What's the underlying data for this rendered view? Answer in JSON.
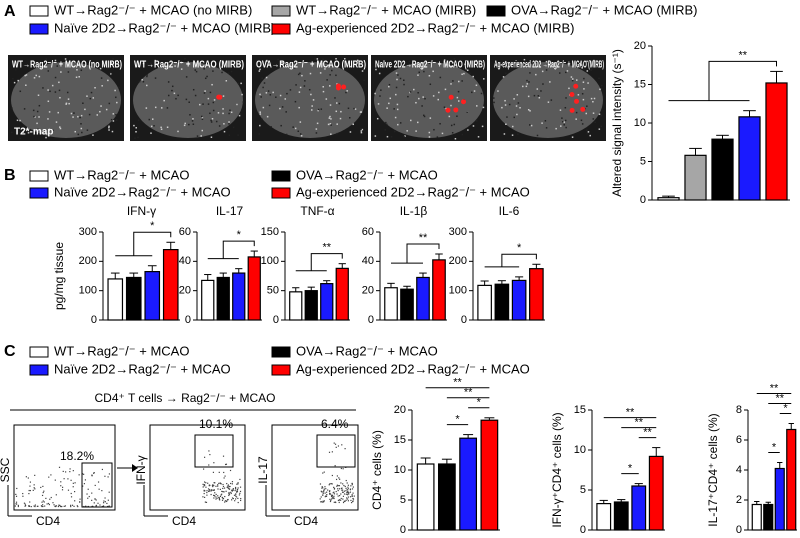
{
  "panel_labels": [
    "A",
    "B",
    "C"
  ],
  "legends": {
    "A": [
      "WT→Rag2⁻/⁻ + MCAO (no MIRB)",
      "WT→Rag2⁻/⁻ + MCAO (MIRB)",
      "OVA→Rag2⁻/⁻ + MCAO (MIRB)",
      "Naïve 2D2→Rag2⁻/⁻ + MCAO (MIRB)",
      "Ag-experienced 2D2→Rag2⁻/⁻ + MCAO (MIRB)"
    ],
    "B": [
      "WT→Rag2⁻/⁻ + MCAO",
      "OVA→Rag2⁻/⁻ + MCAO",
      "Naïve 2D2→Rag2⁻/⁻ + MCAO",
      "Ag-experienced 2D2→Rag2⁻/⁻ + MCAO"
    ],
    "C": [
      "WT→Rag2⁻/⁻ + MCAO",
      "OVA→Rag2⁻/⁻ + MCAO",
      "Naïve 2D2→Rag2⁻/⁻ + MCAO",
      "Ag-experienced 2D2→Rag2⁻/⁻ + MCAO"
    ]
  },
  "mri": {
    "labels": [
      "WT→Rag2⁻/⁻ + MCAO (no MIRB)",
      "WT→Rag2⁻/⁻ + MCAO (MIRB)",
      "OVA→Rag2⁻/⁻ + MCAO (MIRB)",
      "Naïve 2D2→Rag2⁻/⁻ + MCAO (MIRB)",
      "Ag-experienced 2D2 →Rag2⁻/⁻ + MCAO (MIRB)"
    ],
    "map_label": "T2*-map"
  },
  "flow": {
    "title": "CD4⁺ T cells → Rag2⁻/⁻ + MCAO",
    "plots": [
      {
        "y_label": "SSC",
        "x_label": "CD4",
        "gate": "18.2%"
      },
      {
        "y_label": "IFN-γ",
        "x_label": "CD4",
        "gate": "10.1%"
      },
      {
        "y_label": "IL-17",
        "x_label": "CD4",
        "gate": "6.4%"
      }
    ]
  },
  "chart_data": [
    {
      "type": "bar",
      "ylabel": "Altered signal intensity (s⁻¹)",
      "categories": [
        null,
        null,
        null,
        null,
        null
      ],
      "values": [
        0.3,
        5.8,
        7.9,
        10.8,
        15.2
      ],
      "errors": [
        0.2,
        0.9,
        0.5,
        0.8,
        1.5
      ],
      "colors": [
        "#ffffff",
        "#a6a6a6",
        "#000000",
        "#1a1aff",
        "#ff0000"
      ],
      "ylim": [
        0,
        20
      ],
      "yticks": [
        0,
        5,
        10,
        15,
        20
      ],
      "annotations": [
        "**"
      ]
    },
    {
      "type": "bar",
      "title": "IFN-γ",
      "ylabel": "pg/mg tissue",
      "categories": [
        null,
        null,
        null,
        null
      ],
      "values": [
        140,
        145,
        165,
        240
      ],
      "errors": [
        20,
        15,
        20,
        25
      ],
      "colors": [
        "#ffffff",
        "#000000",
        "#1a1aff",
        "#ff0000"
      ],
      "ylim": [
        0,
        300
      ],
      "yticks": [
        0,
        100,
        200,
        300
      ],
      "annotations": [
        "*"
      ]
    },
    {
      "type": "bar",
      "title": "IL-17",
      "categories": [
        null,
        null,
        null,
        null
      ],
      "values": [
        27,
        29,
        32,
        43
      ],
      "errors": [
        4,
        3,
        3,
        4
      ],
      "colors": [
        "#ffffff",
        "#000000",
        "#1a1aff",
        "#ff0000"
      ],
      "ylim": [
        0,
        60
      ],
      "yticks": [
        0,
        20,
        40,
        60
      ],
      "annotations": [
        "*"
      ]
    },
    {
      "type": "bar",
      "title": "TNF-α",
      "categories": [
        null,
        null,
        null,
        null
      ],
      "values": [
        48,
        50,
        62,
        88
      ],
      "errors": [
        7,
        6,
        5,
        8
      ],
      "colors": [
        "#ffffff",
        "#000000",
        "#1a1aff",
        "#ff0000"
      ],
      "ylim": [
        0,
        150
      ],
      "yticks": [
        0,
        50,
        100,
        150
      ],
      "annotations": [
        "**"
      ]
    },
    {
      "type": "bar",
      "title": "IL-1β",
      "categories": [
        null,
        null,
        null,
        null
      ],
      "values": [
        22,
        21,
        29,
        41
      ],
      "errors": [
        3,
        2,
        3,
        4
      ],
      "colors": [
        "#ffffff",
        "#000000",
        "#1a1aff",
        "#ff0000"
      ],
      "ylim": [
        0,
        60
      ],
      "yticks": [
        0,
        20,
        40,
        60
      ],
      "annotations": [
        "**"
      ]
    },
    {
      "type": "bar",
      "title": "IL-6",
      "categories": [
        null,
        null,
        null,
        null
      ],
      "values": [
        118,
        122,
        135,
        175
      ],
      "errors": [
        15,
        12,
        12,
        15
      ],
      "colors": [
        "#ffffff",
        "#000000",
        "#1a1aff",
        "#ff0000"
      ],
      "ylim": [
        0,
        300
      ],
      "yticks": [
        0,
        100,
        200,
        300
      ],
      "annotations": [
        "*"
      ]
    },
    {
      "type": "bar",
      "ylabel": "CD4⁺ cells (%)",
      "categories": [
        null,
        null,
        null,
        null
      ],
      "values": [
        11,
        11,
        15.3,
        18.3
      ],
      "errors": [
        1,
        0.8,
        0.6,
        0.4
      ],
      "colors": [
        "#ffffff",
        "#000000",
        "#1a1aff",
        "#ff0000"
      ],
      "ylim": [
        0,
        20
      ],
      "yticks": [
        0,
        5,
        10,
        15,
        20
      ],
      "annotations": [
        "**",
        "**",
        "*",
        "*"
      ]
    },
    {
      "type": "bar",
      "ylabel": "IFN-γ⁺CD4⁺ cells (%)",
      "categories": [
        null,
        null,
        null,
        null
      ],
      "values": [
        3.3,
        3.5,
        5.5,
        9.2
      ],
      "errors": [
        0.4,
        0.3,
        0.3,
        1.1
      ],
      "colors": [
        "#ffffff",
        "#000000",
        "#1a1aff",
        "#ff0000"
      ],
      "ylim": [
        0,
        15
      ],
      "yticks": [
        0,
        5,
        10,
        15
      ],
      "annotations": [
        "**",
        "**",
        "**",
        "*"
      ]
    },
    {
      "type": "bar",
      "ylabel": "IL-17⁺CD4⁺ cells (%)",
      "categories": [
        null,
        null,
        null,
        null
      ],
      "values": [
        1.7,
        1.7,
        4.1,
        6.7
      ],
      "errors": [
        0.2,
        0.15,
        0.4,
        0.4
      ],
      "colors": [
        "#ffffff",
        "#000000",
        "#1a1aff",
        "#ff0000"
      ],
      "ylim": [
        0,
        8
      ],
      "yticks": [
        0,
        2,
        4,
        6,
        8
      ],
      "annotations": [
        "**",
        "**",
        "*",
        "*"
      ]
    }
  ]
}
